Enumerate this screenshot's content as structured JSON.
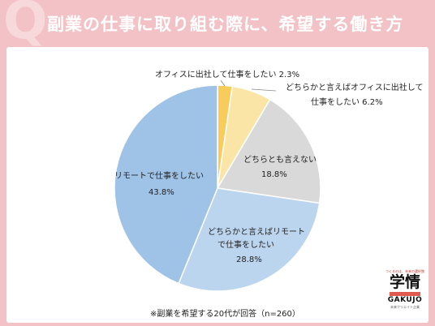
{
  "header": {
    "logo_letter": "Q",
    "title": "副業の仕事に取り組む際に、希望する働き方"
  },
  "chart_data": {
    "type": "pie",
    "slices": [
      {
        "label": "オフィスに出社して仕事をしたい",
        "value": 2.3,
        "display": "2.3%",
        "color": "#f7cc5a"
      },
      {
        "label": "どちらかと言えばオフィスに出社して仕事をしたい",
        "value": 6.2,
        "display": "6.2%",
        "color": "#fbe5a6"
      },
      {
        "label": "どちらとも言えない",
        "value": 18.8,
        "display": "18.8%",
        "color": "#d9d9d9"
      },
      {
        "label": "どちらかと言えばリモートで仕事をしたい",
        "value": 28.8,
        "display": "28.8%",
        "color": "#bcd5ee"
      },
      {
        "label": "リモートで仕事をしたい",
        "value": 43.8,
        "display": "43.8%",
        "color": "#9fc3e7"
      }
    ],
    "labels": {
      "s1": "オフィスに出社して仕事をしたい 2.3%",
      "s2_line1": "どちらかと言えばオフィスに出社して",
      "s2_line2": "仕事をしたい 6.2%",
      "s3_line1": "どちらとも言えない",
      "s3_line2": "18.8%",
      "s4_line1": "どちらかと言えばリモート",
      "s4_line2": "で仕事をしたい",
      "s4_line3": "28.8%",
      "s5_line1": "リモートで仕事をしたい",
      "s5_line2": "43.8%"
    }
  },
  "footnote": "※副業を希望する20代が回答（n=260）",
  "logo": {
    "tagline": "つくるのは、未来の選択肢",
    "kanji": "学情",
    "name": "GAKUJO",
    "sub": "未来クリエイト企業"
  }
}
